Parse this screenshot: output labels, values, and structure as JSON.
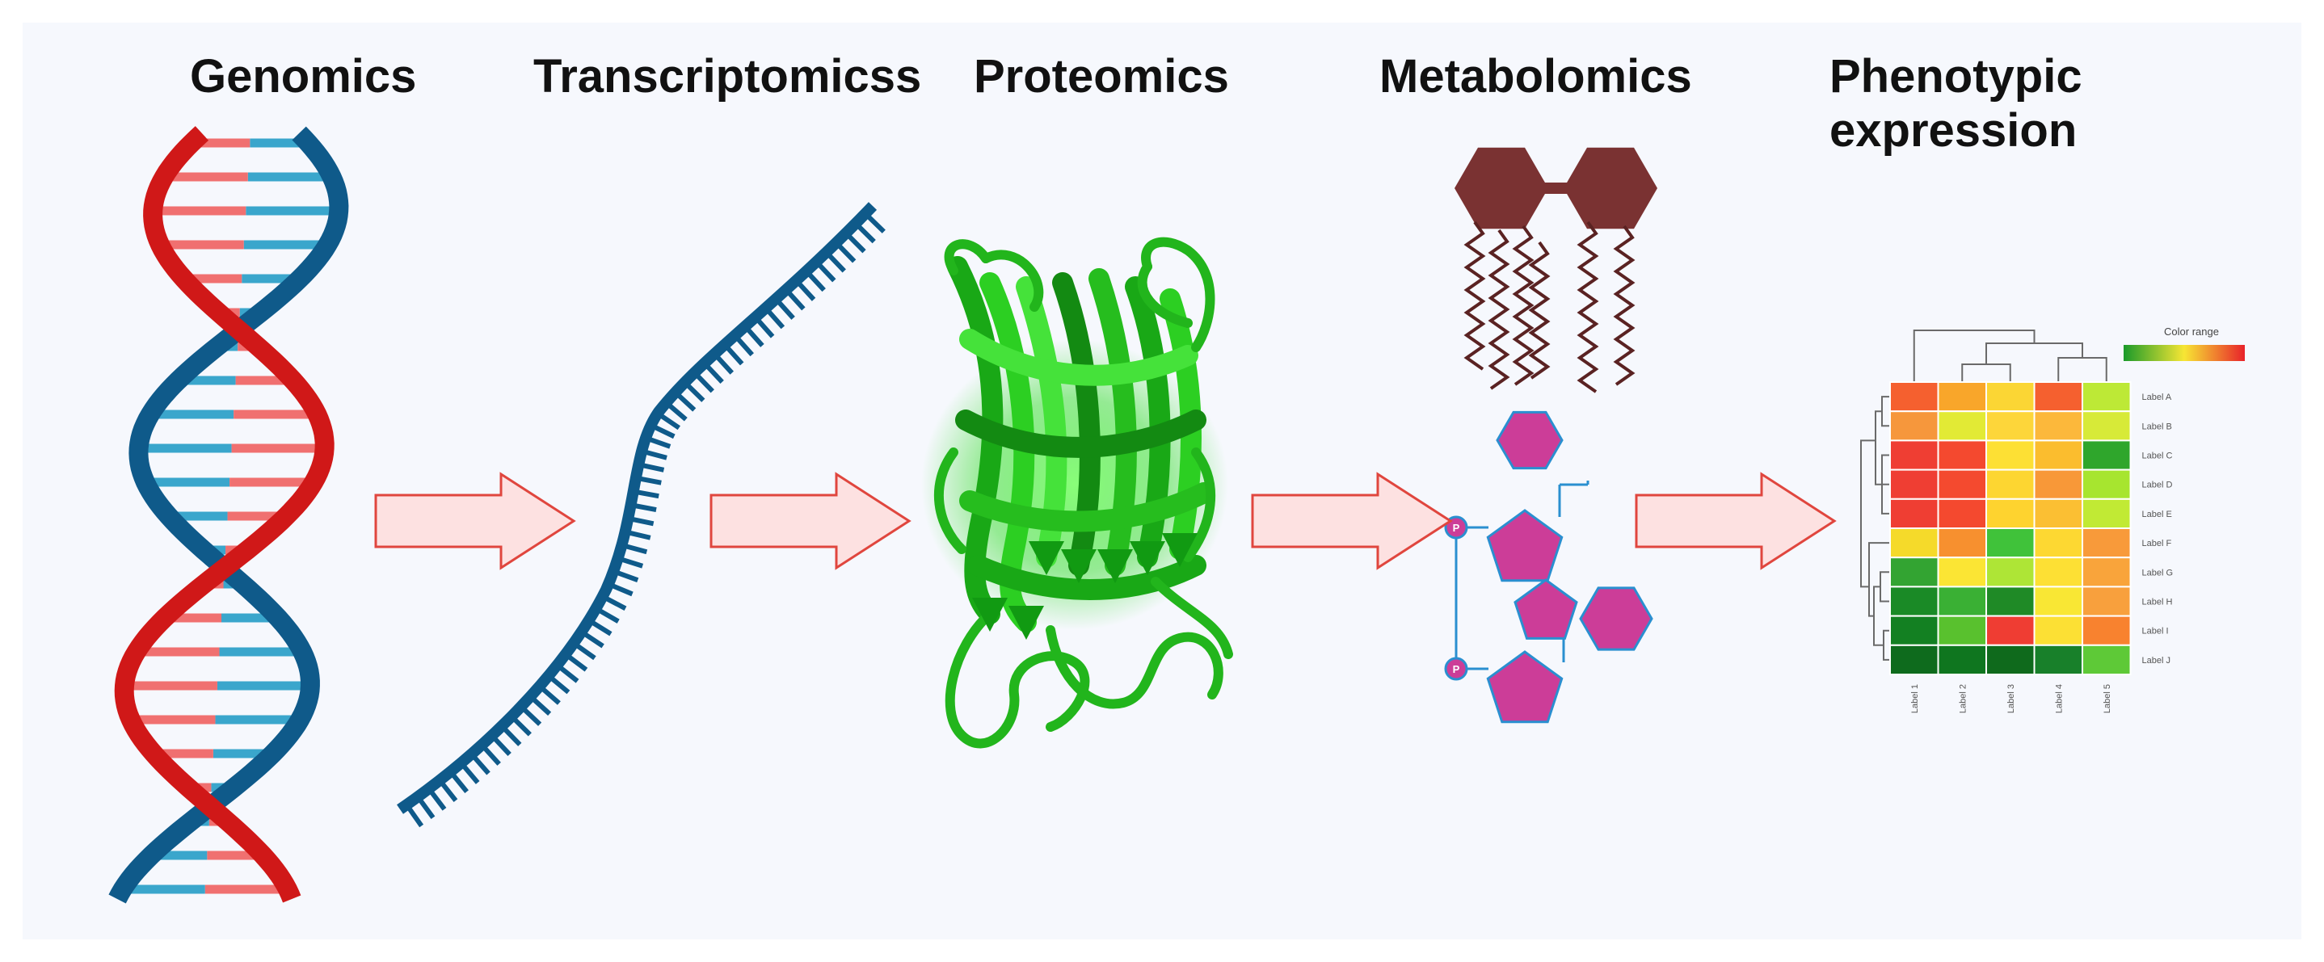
{
  "stages": [
    {
      "name": "Genomics",
      "icon": "dna-double-helix-icon"
    },
    {
      "name": "Transcriptomicss",
      "icon": "rna-strand-icon"
    },
    {
      "name": "Proteomics",
      "icon": "protein-structure-icon"
    },
    {
      "name": "Metabolomics",
      "icon": "metabolite-molecules-icon"
    },
    {
      "name": "Phenotypic\nexpression",
      "icon": "heatmap-icon"
    }
  ],
  "arrow_icon": "right-arrow-icon",
  "colors": {
    "dna_blue": "#0f5a8a",
    "dna_red": "#d01818",
    "rungs_light_red": "#f07070",
    "rungs_light_blue": "#3aa6cc",
    "arrow_fill": "#fde1e1",
    "arrow_stroke": "#e0463e",
    "protein_green": "#22c51c",
    "lipid_head": "#7a3232",
    "sugar_magenta": "#cc3d98",
    "link_blue": "#2a8fd0"
  },
  "metabolite_labels": {
    "phosphate_1": "P",
    "phosphate_2": "P"
  },
  "heatmap": {
    "color_range_label": "Color range",
    "row_labels": [
      "Label A",
      "Label B",
      "Label C",
      "Label D",
      "Label E",
      "Label F",
      "Label G",
      "Label H",
      "Label I",
      "Label J"
    ],
    "col_labels": [
      "Label 1",
      "Label 2",
      "Label 3",
      "Label 4",
      "Label 5"
    ],
    "cells": [
      [
        "#f5602f",
        "#f9a62a",
        "#fbd634",
        "#f5602f",
        "#bde936"
      ],
      [
        "#f6973c",
        "#e2ea35",
        "#fdd63a",
        "#fcb83b",
        "#d7ea38"
      ],
      [
        "#ef3e33",
        "#f4492f",
        "#fde034",
        "#fbbd2e",
        "#2fa62c"
      ],
      [
        "#ef3e33",
        "#f44a2f",
        "#fdd631",
        "#f89838",
        "#a7e52f"
      ],
      [
        "#ef3e33",
        "#f4492f",
        "#fed32f",
        "#fbbf33",
        "#c1ea34"
      ],
      [
        "#f5da2a",
        "#f7902f",
        "#40c23a",
        "#fdd832",
        "#f89a3a"
      ],
      [
        "#33a432",
        "#fbe534",
        "#aee536",
        "#fde034",
        "#f9a43b"
      ],
      [
        "#1a8a26",
        "#3ab034",
        "#1f8a26",
        "#f9e734",
        "#f8a03d"
      ],
      [
        "#138022",
        "#59c12e",
        "#ef3d33",
        "#fce034",
        "#f8822f"
      ],
      [
        "#0e6b1d",
        "#0f761f",
        "#0f6a1c",
        "#18802a",
        "#5ec937"
      ]
    ]
  }
}
